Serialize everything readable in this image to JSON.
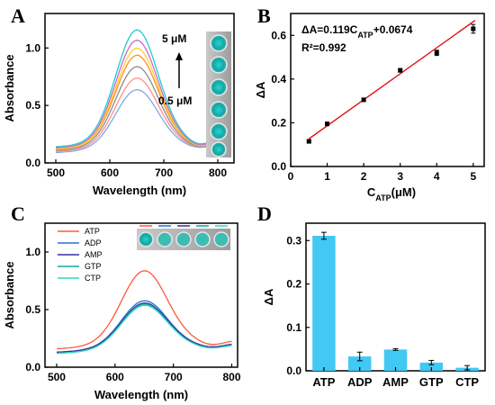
{
  "chart_data": [
    {
      "panel": "A",
      "type": "line",
      "xlabel": "Wavelength (nm)",
      "ylabel": "Absorbance",
      "xlim": [
        480,
        830
      ],
      "ylim": [
        0,
        1.3
      ],
      "xticks": [
        500,
        600,
        700,
        800
      ],
      "yticks": [
        0.0,
        0.5,
        1.0
      ],
      "annotations": [
        "5 μM",
        "0.5 μM"
      ],
      "peak_x": 650,
      "width": 55,
      "series": [
        {
          "color": "#7fa7e3",
          "peak": 0.6,
          "edge": 0.09
        },
        {
          "color": "#ff8f8f",
          "peak": 0.7,
          "edge": 0.1
        },
        {
          "color": "#8c8c8c",
          "peak": 0.8,
          "edge": 0.11
        },
        {
          "color": "#ff8c2a",
          "peak": 0.9,
          "edge": 0.12
        },
        {
          "color": "#ffd21e",
          "peak": 0.96,
          "edge": 0.12
        },
        {
          "color": "#cc66cc",
          "peak": 1.03,
          "edge": 0.13
        },
        {
          "color": "#22cccc",
          "peak": 1.12,
          "edge": 0.14
        }
      ]
    },
    {
      "panel": "B",
      "type": "scatter",
      "equation_parts": [
        "ΔA=0.119C",
        "ATP",
        "+0.0674"
      ],
      "r2_text": "R²=0.992",
      "xlabel_parts": [
        "C",
        "ATP",
        "(μM)"
      ],
      "ylabel": "ΔA",
      "xlim": [
        0,
        5.3
      ],
      "ylim": [
        0,
        0.7
      ],
      "xticks": [
        0,
        1,
        2,
        3,
        4,
        5
      ],
      "yticks": [
        0.0,
        0.2,
        0.4,
        0.6
      ],
      "x": [
        0.5,
        1,
        2,
        3,
        4,
        5
      ],
      "y": [
        0.115,
        0.195,
        0.305,
        0.44,
        0.52,
        0.63
      ],
      "err": [
        0.008,
        0.008,
        0.006,
        0.008,
        0.012,
        0.02
      ],
      "fit": {
        "slope": 0.119,
        "intercept": 0.0674,
        "color": "#e00000"
      }
    },
    {
      "panel": "C",
      "type": "line",
      "xlabel": "Wavelength (nm)",
      "ylabel": "Absorbance",
      "xlim": [
        480,
        810
      ],
      "ylim": [
        0,
        1.25
      ],
      "xticks": [
        500,
        600,
        700,
        800
      ],
      "yticks": [
        0.0,
        0.5,
        1.0
      ],
      "peak_x": 650,
      "width": 55,
      "series": [
        {
          "name": "ATP",
          "color": "#ff5a3c",
          "peak": 0.8,
          "edge": 0.16
        },
        {
          "name": "ADP",
          "color": "#2a6fd6",
          "peak": 0.54,
          "edge": 0.13
        },
        {
          "name": "AMP",
          "color": "#3b2f99",
          "peak": 0.52,
          "edge": 0.13
        },
        {
          "name": "GTP",
          "color": "#10a89a",
          "peak": 0.51,
          "edge": 0.12
        },
        {
          "name": "CTP",
          "color": "#33d6c6",
          "peak": 0.5,
          "edge": 0.12
        }
      ]
    },
    {
      "panel": "D",
      "type": "bar",
      "ylabel": "ΔA",
      "categories": [
        "ATP",
        "ADP",
        "AMP",
        "GTP",
        "CTP"
      ],
      "values": [
        0.311,
        0.033,
        0.049,
        0.019,
        0.007
      ],
      "err": [
        0.008,
        0.01,
        0.002,
        0.005,
        0.005
      ],
      "ylim": [
        0,
        0.34
      ],
      "yticks": [
        0.0,
        0.1,
        0.2,
        0.3
      ],
      "bar_color": "#42c8f5"
    }
  ]
}
